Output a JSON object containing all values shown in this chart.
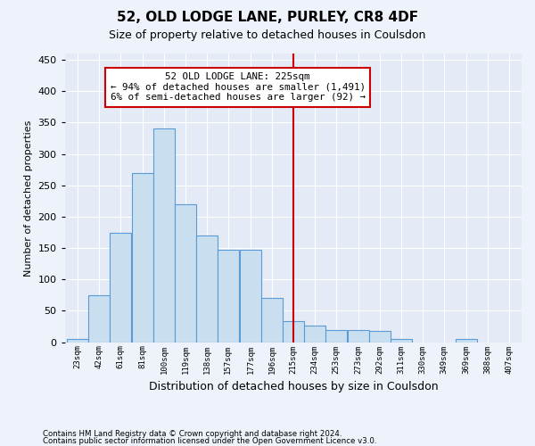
{
  "title": "52, OLD LODGE LANE, PURLEY, CR8 4DF",
  "subtitle": "Size of property relative to detached houses in Coulsdon",
  "xlabel": "Distribution of detached houses by size in Coulsdon",
  "ylabel": "Number of detached properties",
  "footer1": "Contains HM Land Registry data © Crown copyright and database right 2024.",
  "footer2": "Contains public sector information licensed under the Open Government Licence v3.0.",
  "annotation_title": "52 OLD LODGE LANE: 225sqm",
  "annotation_line1": "← 94% of detached houses are smaller (1,491)",
  "annotation_line2": "6% of semi-detached houses are larger (92) →",
  "property_size": 225,
  "bin_labels": [
    "23sqm",
    "42sqm",
    "61sqm",
    "81sqm",
    "100sqm",
    "119sqm",
    "138sqm",
    "157sqm",
    "177sqm",
    "196sqm",
    "215sqm",
    "234sqm",
    "253sqm",
    "273sqm",
    "292sqm",
    "311sqm",
    "330sqm",
    "349sqm",
    "369sqm",
    "388sqm",
    "407sqm"
  ],
  "bin_edges": [
    23,
    42,
    61,
    81,
    100,
    119,
    138,
    157,
    177,
    196,
    215,
    234,
    253,
    273,
    292,
    311,
    330,
    349,
    369,
    388,
    407
  ],
  "bar_heights": [
    5,
    75,
    175,
    270,
    340,
    220,
    170,
    148,
    148,
    70,
    33,
    27,
    20,
    20,
    18,
    5,
    0,
    0,
    5,
    0,
    0
  ],
  "bar_color": "#c9dff0",
  "bar_edge_color": "#5b9bd5",
  "vline_color": "#cc0000",
  "vline_x": 225,
  "annotation_box_color": "#cc0000",
  "ylim": [
    0,
    460
  ],
  "yticks": [
    0,
    50,
    100,
    150,
    200,
    250,
    300,
    350,
    400,
    450
  ],
  "background_color": "#eef2fa",
  "plot_bg_color": "#e4eaf6"
}
